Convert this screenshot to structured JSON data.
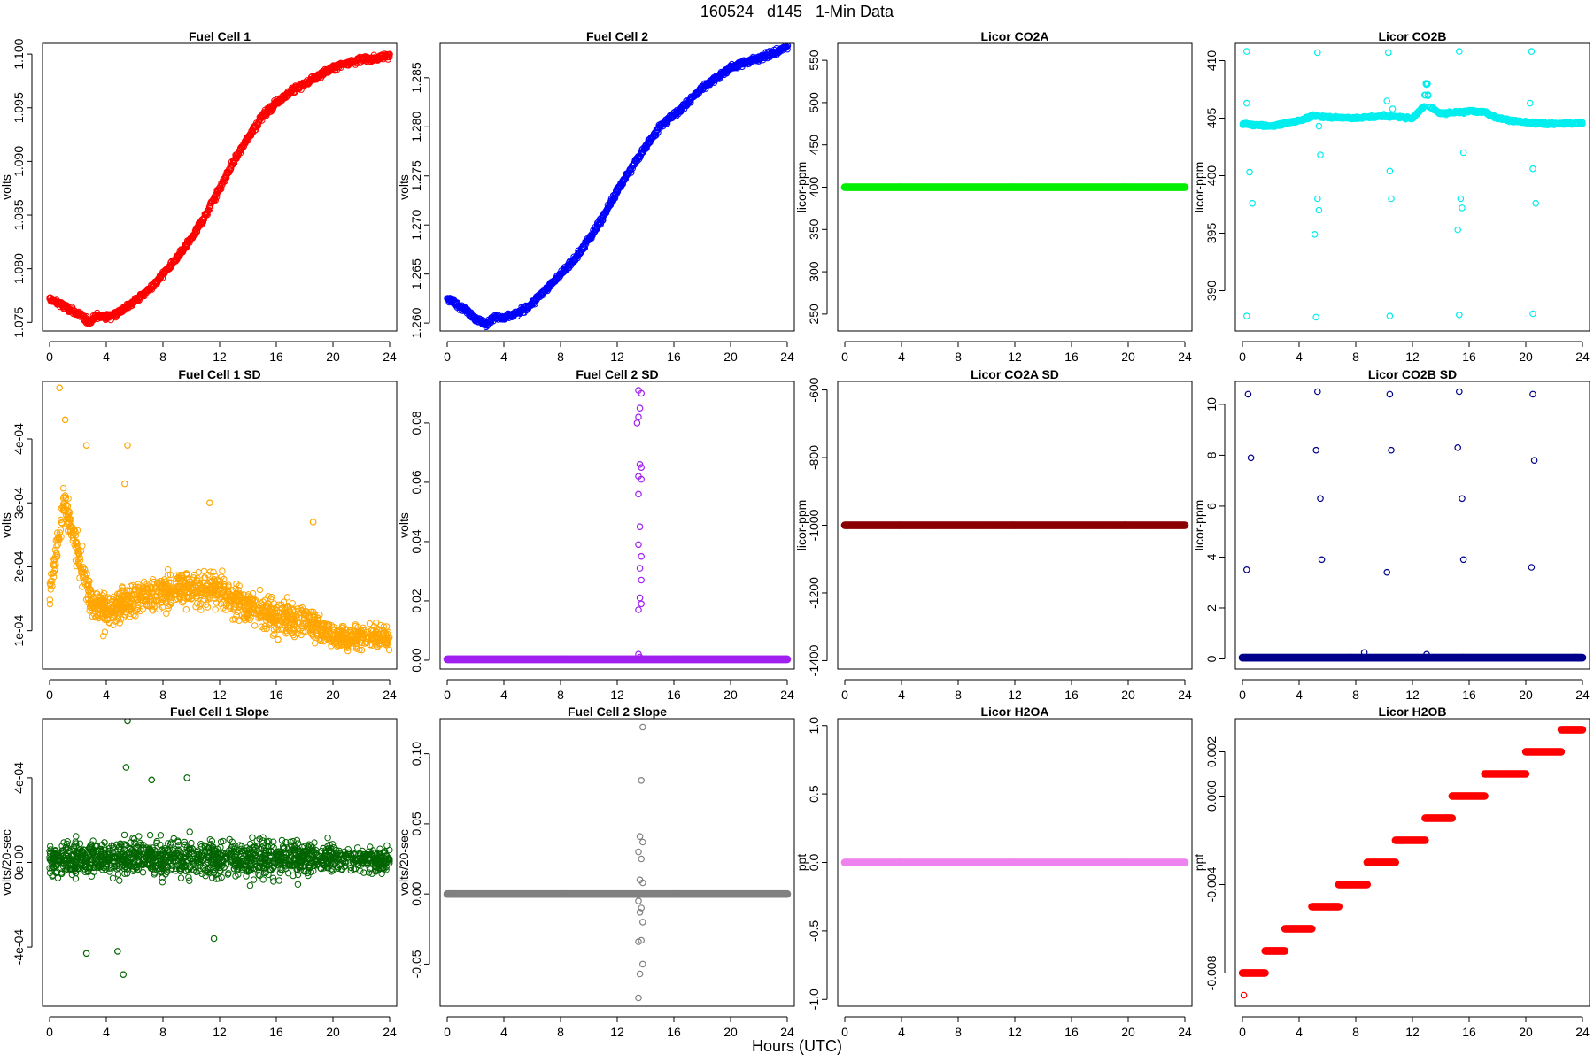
{
  "figure": {
    "title": "160524   d145   1-Min Data",
    "xlabel": "Hours (UTC)"
  },
  "chart_data": [
    {
      "type": "scatter",
      "title": "Fuel Cell 1",
      "ylabel": "volts",
      "color": "#ff0000",
      "xlim": [
        0,
        24
      ],
      "ylim": [
        1.0742,
        1.101
      ],
      "xticks": [
        "0",
        "4",
        "8",
        "12",
        "16",
        "20",
        "24"
      ],
      "yticks": [
        1.075,
        1.08,
        1.085,
        1.09,
        1.095,
        1.1
      ],
      "ytick_labels": [
        "1.075",
        "1.080",
        "1.085",
        "1.090",
        "1.095",
        "1.100"
      ],
      "shape": "line",
      "points": [
        [
          0,
          1.0772
        ],
        [
          1,
          1.0765
        ],
        [
          2,
          1.0758
        ],
        [
          2.8,
          1.075
        ],
        [
          3.2,
          1.0756
        ],
        [
          4,
          1.0755
        ],
        [
          5,
          1.076
        ],
        [
          6,
          1.077
        ],
        [
          7,
          1.078
        ],
        [
          8,
          1.0795
        ],
        [
          9,
          1.081
        ],
        [
          10,
          1.0828
        ],
        [
          11,
          1.085
        ],
        [
          12,
          1.0875
        ],
        [
          13,
          1.09
        ],
        [
          14,
          1.0922
        ],
        [
          15,
          1.0942
        ],
        [
          16,
          1.0955
        ],
        [
          17,
          1.0965
        ],
        [
          18,
          1.0972
        ],
        [
          19,
          1.098
        ],
        [
          20,
          1.0987
        ],
        [
          21,
          1.0992
        ],
        [
          22,
          1.0995
        ],
        [
          23,
          1.0996
        ],
        [
          24,
          1.0999
        ]
      ],
      "noise": 0.0004
    },
    {
      "type": "scatter",
      "title": "Fuel Cell 2",
      "ylabel": "volts",
      "color": "#0000ff",
      "xlim": [
        0,
        24
      ],
      "ylim": [
        1.2592,
        1.2885
      ],
      "xticks": [
        "0",
        "4",
        "8",
        "12",
        "16",
        "20",
        "24"
      ],
      "yticks": [
        1.26,
        1.265,
        1.27,
        1.275,
        1.28,
        1.285
      ],
      "ytick_labels": [
        "1.260",
        "1.265",
        "1.270",
        "1.275",
        "1.280",
        "1.285"
      ],
      "shape": "line",
      "points": [
        [
          0,
          1.2625
        ],
        [
          1,
          1.2617
        ],
        [
          2,
          1.2605
        ],
        [
          2.8,
          1.2598
        ],
        [
          3.2,
          1.2606
        ],
        [
          4,
          1.2605
        ],
        [
          5,
          1.261
        ],
        [
          6,
          1.262
        ],
        [
          7,
          1.2635
        ],
        [
          8,
          1.265
        ],
        [
          9,
          1.2665
        ],
        [
          10,
          1.2685
        ],
        [
          11,
          1.2708
        ],
        [
          12,
          1.2735
        ],
        [
          13,
          1.2758
        ],
        [
          14,
          1.278
        ],
        [
          15,
          1.28
        ],
        [
          16,
          1.2812
        ],
        [
          17,
          1.2825
        ],
        [
          18,
          1.284
        ],
        [
          19,
          1.285
        ],
        [
          20,
          1.286
        ],
        [
          21,
          1.2866
        ],
        [
          22,
          1.287
        ],
        [
          23,
          1.2875
        ],
        [
          24,
          1.2882
        ]
      ],
      "noise": 0.0004
    },
    {
      "type": "scatter",
      "title": "Licor CO2A",
      "ylabel": "licor-ppm",
      "color": "#00ee00",
      "xlim": [
        0,
        24
      ],
      "ylim": [
        230,
        570
      ],
      "xticks": [
        "0",
        "4",
        "8",
        "12",
        "16",
        "20",
        "24"
      ],
      "yticks": [
        250,
        300,
        350,
        400,
        450,
        500,
        550
      ],
      "ytick_labels": [
        "250",
        "300",
        "350",
        "400",
        "450",
        "500",
        "550"
      ],
      "shape": "flat",
      "value": 400
    },
    {
      "type": "scatter",
      "title": "Licor CO2B",
      "ylabel": "licor-ppm",
      "color": "#00eeee",
      "xlim": [
        0,
        24
      ],
      "ylim": [
        386.5,
        411.5
      ],
      "xticks": [
        "0",
        "4",
        "8",
        "12",
        "16",
        "20",
        "24"
      ],
      "yticks": [
        390,
        395,
        400,
        405,
        410
      ],
      "ytick_labels": [
        "390",
        "395",
        "400",
        "405",
        "410"
      ],
      "shape": "line",
      "points": [
        [
          0,
          404.5
        ],
        [
          2,
          404.3
        ],
        [
          4,
          404.8
        ],
        [
          5,
          405.2
        ],
        [
          6,
          405.1
        ],
        [
          8,
          405.0
        ],
        [
          10,
          405.2
        ],
        [
          12,
          405.0
        ],
        [
          12.8,
          406.0
        ],
        [
          13,
          408.5
        ],
        [
          13.2,
          406.0
        ],
        [
          14,
          405.4
        ],
        [
          16,
          405.6
        ],
        [
          17,
          405.6
        ],
        [
          18,
          405.0
        ],
        [
          20,
          404.6
        ],
        [
          22,
          404.5
        ],
        [
          24,
          404.6
        ]
      ],
      "noise": 0.15,
      "outliers": [
        [
          0.3,
          410.8
        ],
        [
          0.3,
          406.3
        ],
        [
          0.5,
          400.3
        ],
        [
          0.7,
          397.6
        ],
        [
          0.3,
          387.8
        ],
        [
          5.3,
          410.7
        ],
        [
          5.3,
          398.0
        ],
        [
          5.4,
          397.0
        ],
        [
          5.4,
          404.3
        ],
        [
          5.5,
          401.8
        ],
        [
          5.1,
          394.9
        ],
        [
          5.2,
          387.7
        ],
        [
          10.3,
          410.7
        ],
        [
          10.2,
          406.5
        ],
        [
          10.4,
          400.4
        ],
        [
          10.5,
          398.0
        ],
        [
          10.6,
          405.8
        ],
        [
          10.4,
          387.8
        ],
        [
          15.3,
          410.8
        ],
        [
          15.2,
          395.3
        ],
        [
          15.4,
          398.0
        ],
        [
          15.5,
          397.2
        ],
        [
          15.6,
          402.0
        ],
        [
          15.3,
          387.9
        ],
        [
          20.4,
          410.8
        ],
        [
          20.3,
          406.3
        ],
        [
          20.5,
          400.6
        ],
        [
          20.7,
          397.6
        ],
        [
          20.5,
          388.0
        ]
      ]
    },
    {
      "type": "scatter",
      "title": "Fuel Cell 1 SD",
      "ylabel": "volts",
      "color": "#ffa500",
      "xlim": [
        0,
        24
      ],
      "ylim": [
        4e-05,
        0.00049
      ],
      "xticks": [
        "0",
        "4",
        "8",
        "12",
        "16",
        "20",
        "24"
      ],
      "yticks": [
        0.0001,
        0.0002,
        0.0003,
        0.0004
      ],
      "ytick_labels": [
        "1e-04",
        "2e-04",
        "3e-04",
        "4e-04"
      ],
      "shape": "scatter",
      "points": [
        [
          0,
          0.00016
        ],
        [
          1,
          0.0003
        ],
        [
          2,
          0.00022
        ],
        [
          3,
          0.00014
        ],
        [
          4,
          0.00013
        ],
        [
          6,
          0.00015
        ],
        [
          8,
          0.00016
        ],
        [
          10,
          0.00017
        ],
        [
          12,
          0.00016
        ],
        [
          14,
          0.00014
        ],
        [
          16,
          0.00012
        ],
        [
          18,
          0.00012
        ],
        [
          20,
          9e-05
        ],
        [
          22,
          9e-05
        ],
        [
          24,
          9e-05
        ]
      ],
      "noise": 4e-05,
      "outliers": [
        [
          0.7,
          0.00048
        ],
        [
          1.1,
          0.00043
        ],
        [
          2.6,
          0.00039
        ],
        [
          5.5,
          0.00039
        ],
        [
          5.3,
          0.00033
        ],
        [
          11.3,
          0.0003
        ],
        [
          18.6,
          0.00027
        ]
      ]
    },
    {
      "type": "scatter",
      "title": "Fuel Cell 2 SD",
      "ylabel": "volts",
      "color": "#a020f0",
      "xlim": [
        0,
        24
      ],
      "ylim": [
        -0.003,
        0.094
      ],
      "xticks": [
        "0",
        "4",
        "8",
        "12",
        "16",
        "20",
        "24"
      ],
      "yticks": [
        0.0,
        0.02,
        0.04,
        0.06,
        0.08
      ],
      "ytick_labels": [
        "0.00",
        "0.02",
        "0.04",
        "0.06",
        "0.08"
      ],
      "shape": "flat",
      "value": 0.0003,
      "outliers": [
        [
          13.5,
          0.091
        ],
        [
          13.7,
          0.09
        ],
        [
          13.6,
          0.085
        ],
        [
          13.5,
          0.082
        ],
        [
          13.4,
          0.08
        ],
        [
          13.6,
          0.066
        ],
        [
          13.7,
          0.065
        ],
        [
          13.5,
          0.062
        ],
        [
          13.7,
          0.061
        ],
        [
          13.5,
          0.056
        ],
        [
          13.6,
          0.045
        ],
        [
          13.5,
          0.039
        ],
        [
          13.7,
          0.035
        ],
        [
          13.6,
          0.031
        ],
        [
          13.7,
          0.027
        ],
        [
          13.6,
          0.021
        ],
        [
          13.7,
          0.019
        ],
        [
          13.5,
          0.017
        ],
        [
          13.5,
          0.002
        ],
        [
          13.6,
          0.001
        ]
      ]
    },
    {
      "type": "scatter",
      "title": "Licor CO2A SD",
      "ylabel": "licor-ppm",
      "color": "#8b0000",
      "xlim": [
        0,
        24
      ],
      "ylim": [
        -1425,
        -575
      ],
      "xticks": [
        "0",
        "4",
        "8",
        "12",
        "16",
        "20",
        "24"
      ],
      "yticks": [
        -1400,
        -1200,
        -1000,
        -800,
        -600
      ],
      "ytick_labels": [
        "-1400",
        "-1200",
        "-1000",
        "-800",
        "-600"
      ],
      "shape": "flat",
      "value": -1000
    },
    {
      "type": "scatter",
      "title": "Licor CO2B SD",
      "ylabel": "licor-ppm",
      "color": "#00008b",
      "xlim": [
        0,
        24
      ],
      "ylim": [
        -0.4,
        10.9
      ],
      "xticks": [
        "0",
        "4",
        "8",
        "12",
        "16",
        "20",
        "24"
      ],
      "yticks": [
        0,
        2,
        4,
        6,
        8,
        10
      ],
      "ytick_labels": [
        "0",
        "2",
        "4",
        "6",
        "8",
        "10"
      ],
      "shape": "flat",
      "value": 0.05,
      "outliers": [
        [
          0.4,
          10.4
        ],
        [
          0.6,
          7.9
        ],
        [
          0.3,
          3.5
        ],
        [
          5.3,
          10.5
        ],
        [
          5.2,
          8.2
        ],
        [
          5.5,
          6.3
        ],
        [
          5.6,
          3.9
        ],
        [
          10.4,
          10.4
        ],
        [
          10.5,
          8.2
        ],
        [
          10.2,
          3.4
        ],
        [
          15.3,
          10.5
        ],
        [
          15.2,
          8.3
        ],
        [
          15.5,
          6.3
        ],
        [
          15.6,
          3.9
        ],
        [
          20.5,
          10.4
        ],
        [
          20.6,
          7.8
        ],
        [
          20.4,
          3.6
        ],
        [
          8.6,
          0.25
        ],
        [
          13.0,
          0.18
        ]
      ]
    },
    {
      "type": "scatter",
      "title": "Fuel Cell 1 Slope",
      "ylabel": "volts/20-sec",
      "color": "#006400",
      "xlim": [
        0,
        24
      ],
      "ylim": [
        -0.00068,
        0.00068
      ],
      "xticks": [
        "0",
        "4",
        "8",
        "12",
        "16",
        "20",
        "24"
      ],
      "yticks": [
        -0.0004,
        0,
        0.0004
      ],
      "ytick_labels": [
        "-4e-04",
        "0e+00",
        "4e-04"
      ],
      "shape": "scatter",
      "points": [
        [
          0,
          2e-05
        ],
        [
          6,
          2e-05
        ],
        [
          12,
          2e-05
        ],
        [
          18,
          2e-05
        ],
        [
          24,
          1e-05
        ]
      ],
      "noise": 0.00013,
      "outliers": [
        [
          5.5,
          0.00067
        ],
        [
          5.2,
          -0.00053
        ],
        [
          5.4,
          0.00045
        ],
        [
          9.7,
          0.0004
        ],
        [
          7.2,
          0.00039
        ],
        [
          4.8,
          -0.00042
        ],
        [
          2.6,
          -0.00043
        ],
        [
          11.6,
          -0.00036
        ]
      ]
    },
    {
      "type": "scatter",
      "title": "Fuel Cell 2 Slope",
      "ylabel": "volts/20-sec",
      "color": "#808080",
      "xlim": [
        0,
        24
      ],
      "ylim": [
        -0.08,
        0.125
      ],
      "xticks": [
        "0",
        "4",
        "8",
        "12",
        "16",
        "20",
        "24"
      ],
      "yticks": [
        -0.05,
        0.0,
        0.05,
        0.1
      ],
      "ytick_labels": [
        "-0.05",
        "0.00",
        "0.05",
        "0.10"
      ],
      "shape": "flat",
      "value": 0.0,
      "outliers": [
        [
          13.8,
          0.119
        ],
        [
          13.7,
          0.081
        ],
        [
          13.6,
          0.041
        ],
        [
          13.8,
          0.037
        ],
        [
          13.5,
          0.03
        ],
        [
          13.7,
          0.025
        ],
        [
          13.6,
          0.01
        ],
        [
          13.8,
          0.008
        ],
        [
          13.5,
          -0.005
        ],
        [
          13.7,
          -0.01
        ],
        [
          13.6,
          -0.013
        ],
        [
          13.8,
          -0.02
        ],
        [
          13.5,
          -0.034
        ],
        [
          13.7,
          -0.033
        ],
        [
          13.8,
          -0.05
        ],
        [
          13.6,
          -0.057
        ],
        [
          13.5,
          -0.074
        ]
      ]
    },
    {
      "type": "scatter",
      "title": "Licor H2OA",
      "ylabel": "ppt",
      "color": "#ee82ee",
      "xlim": [
        0,
        24
      ],
      "ylim": [
        -1.05,
        1.05
      ],
      "xticks": [
        "0",
        "4",
        "8",
        "12",
        "16",
        "20",
        "24"
      ],
      "yticks": [
        -1.0,
        -0.5,
        0.0,
        0.5,
        1.0
      ],
      "ytick_labels": [
        "-1.0",
        "-0.5",
        "0.0",
        "0.5",
        "1.0"
      ],
      "shape": "flat",
      "value": 0.0
    },
    {
      "type": "scatter",
      "title": "Licor H2OB",
      "ylabel": "ppt",
      "color": "#ff0000",
      "xlim": [
        0,
        24
      ],
      "ylim": [
        -0.0095,
        0.0035
      ],
      "xticks": [
        "0",
        "4",
        "8",
        "12",
        "16",
        "20",
        "24"
      ],
      "yticks": [
        -0.008,
        -0.004,
        0.0,
        0.002
      ],
      "ytick_labels": [
        "-0.008",
        "-0.004",
        "0.000",
        "0.002"
      ],
      "shape": "steps",
      "steps": [
        [
          0,
          1.6,
          -0.008
        ],
        [
          1.6,
          3.0,
          -0.007
        ],
        [
          3.0,
          4.9,
          -0.006
        ],
        [
          4.9,
          6.8,
          -0.005
        ],
        [
          6.8,
          8.8,
          -0.004
        ],
        [
          8.8,
          10.8,
          -0.003
        ],
        [
          10.8,
          12.9,
          -0.002
        ],
        [
          12.9,
          14.8,
          -0.001
        ],
        [
          14.8,
          17.1,
          0.0
        ],
        [
          17.1,
          20.0,
          0.001
        ],
        [
          20.0,
          22.5,
          0.002
        ],
        [
          22.5,
          24,
          0.003
        ]
      ],
      "outliers": [
        [
          0.1,
          -0.009
        ]
      ]
    }
  ]
}
